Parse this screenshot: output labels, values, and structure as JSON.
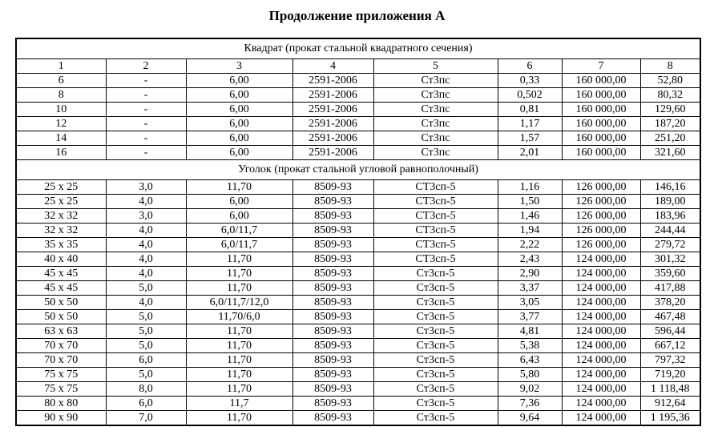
{
  "title": "Продолжение приложения А",
  "column_numbers": [
    "1",
    "2",
    "3",
    "4",
    "5",
    "6",
    "7",
    "8"
  ],
  "sections": [
    {
      "heading": "Квадрат (прокат стальной квадратного сечения)",
      "show_column_numbers": true,
      "rows": [
        [
          "6",
          "-",
          "6,00",
          "2591-2006",
          "Ст3пс",
          "0,33",
          "160 000,00",
          "52,80"
        ],
        [
          "8",
          "-",
          "6,00",
          "2591-2006",
          "Ст3пс",
          "0,502",
          "160 000,00",
          "80,32"
        ],
        [
          "10",
          "-",
          "6,00",
          "2591-2006",
          "Ст3пс",
          "0,81",
          "160 000,00",
          "129,60"
        ],
        [
          "12",
          "-",
          "6,00",
          "2591-2006",
          "Ст3пс",
          "1,17",
          "160 000,00",
          "187,20"
        ],
        [
          "14",
          "-",
          "6,00",
          "2591-2006",
          "Ст3пс",
          "1,57",
          "160 000,00",
          "251,20"
        ],
        [
          "16",
          "-",
          "6,00",
          "2591-2006",
          "Ст3пс",
          "2,01",
          "160 000,00",
          "321,60"
        ]
      ]
    },
    {
      "heading": "Уголок (прокат стальной угловой равнополочный)",
      "show_column_numbers": false,
      "rows": [
        [
          "25 х 25",
          "3,0",
          "11,70",
          "8509-93",
          "СТ3сп-5",
          "1,16",
          "126 000,00",
          "146,16"
        ],
        [
          "25 х 25",
          "4,0",
          "6,00",
          "8509-93",
          "СТ3сп-5",
          "1,50",
          "126 000,00",
          "189,00"
        ],
        [
          "32 х 32",
          "3,0",
          "6,00",
          "8509-93",
          "СТ3сп-5",
          "1,46",
          "126 000,00",
          "183,96"
        ],
        [
          "32 х 32",
          "4,0",
          "6,0/11,7",
          "8509-93",
          "СТ3сп-5",
          "1,94",
          "126 000,00",
          "244,44"
        ],
        [
          "35 х 35",
          "4,0",
          "6,0/11,7",
          "8509-93",
          "СТ3сп-5",
          "2,22",
          "126 000,00",
          "279,72"
        ],
        [
          "40 х 40",
          "4,0",
          "11,70",
          "8509-93",
          "СТ3сп-5",
          "2,43",
          "124 000,00",
          "301,32"
        ],
        [
          "45 х 45",
          "4,0",
          "11,70",
          "8509-93",
          "Ст3сп-5",
          "2,90",
          "124 000,00",
          "359,60"
        ],
        [
          "45 х 45",
          "5,0",
          "11,70",
          "8509-93",
          "Ст3сп-5",
          "3,37",
          "124 000,00",
          "417,88"
        ],
        [
          "50 х 50",
          "4,0",
          "6,0/11,7/12,0",
          "8509-93",
          "Ст3сп-5",
          "3,05",
          "124 000,00",
          "378,20"
        ],
        [
          "50 х 50",
          "5,0",
          "11,70/6,0",
          "8509-93",
          "Ст3сп-5",
          "3,77",
          "124 000,00",
          "467,48"
        ],
        [
          "63 х 63",
          "5,0",
          "11,70",
          "8509-93",
          "Ст3сп-5",
          "4,81",
          "124 000,00",
          "596,44"
        ],
        [
          "70 х 70",
          "5,0",
          "11,70",
          "8509-93",
          "Ст3сп-5",
          "5,38",
          "124 000,00",
          "667,12"
        ],
        [
          "70 х 70",
          "6,0",
          "11,70",
          "8509-93",
          "Ст3сп-5",
          "6,43",
          "124 000,00",
          "797,32"
        ],
        [
          "75 х 75",
          "5,0",
          "11,70",
          "8509-93",
          "Ст3сп-5",
          "5,80",
          "124 000,00",
          "719,20"
        ],
        [
          "75 х 75",
          "8,0",
          "11,70",
          "8509-93",
          "Ст3сп-5",
          "9,02",
          "124 000,00",
          "1 118,48"
        ],
        [
          "80 х 80",
          "6,0",
          "11,7",
          "8509-93",
          "Ст3сп-5",
          "7,36",
          "124 000,00",
          "912,64"
        ],
        [
          "90 х 90",
          "7,0",
          "11,70",
          "8509-93",
          "Ст3сп-5",
          "9,64",
          "124 000,00",
          "1 195,36"
        ]
      ]
    }
  ]
}
